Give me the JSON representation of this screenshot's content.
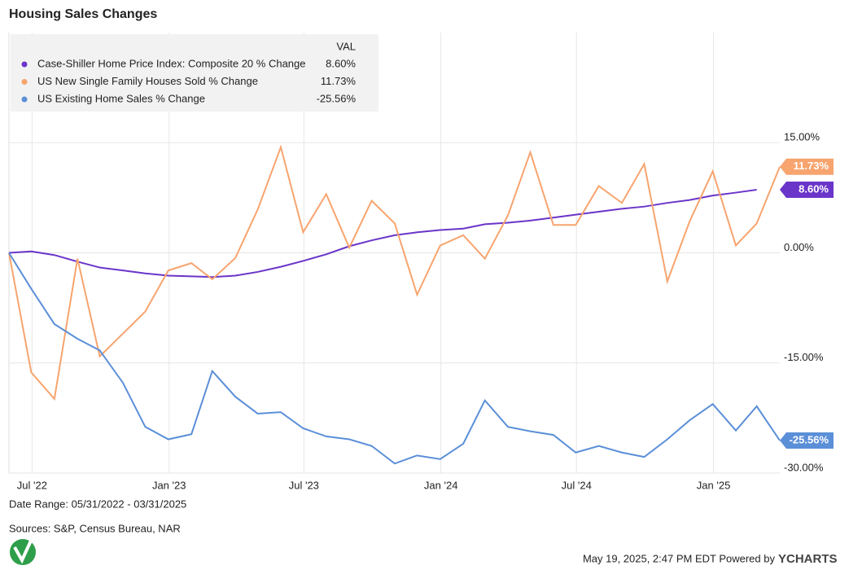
{
  "chart_data": {
    "type": "line",
    "title": "Housing Sales Changes",
    "legend_header": "VAL",
    "x": [
      "2022-05-31",
      "2022-06-30",
      "2022-07-31",
      "2022-08-31",
      "2022-09-30",
      "2022-10-31",
      "2022-11-30",
      "2022-12-31",
      "2023-01-31",
      "2023-02-28",
      "2023-03-31",
      "2023-04-30",
      "2023-05-31",
      "2023-06-30",
      "2023-07-31",
      "2023-08-31",
      "2023-09-30",
      "2023-10-31",
      "2023-11-30",
      "2023-12-31",
      "2024-01-31",
      "2024-02-29",
      "2024-03-31",
      "2024-04-30",
      "2024-05-31",
      "2024-06-30",
      "2024-07-31",
      "2024-08-31",
      "2024-09-30",
      "2024-10-31",
      "2024-11-30",
      "2024-12-31",
      "2025-01-31",
      "2025-02-28",
      "2025-03-31"
    ],
    "series": [
      {
        "name": "Case-Shiller Home Price Index: Composite 20 % Change",
        "color": "#6a35c9",
        "values": [
          0,
          0.2,
          -0.3,
          -1.2,
          -2.0,
          -2.4,
          -2.8,
          -3.1,
          -3.2,
          -3.3,
          -3.1,
          -2.6,
          -1.9,
          -1.1,
          -0.2,
          0.9,
          1.7,
          2.4,
          2.8,
          3.1,
          3.3,
          3.9,
          4.1,
          4.4,
          4.8,
          5.2,
          5.6,
          6.0,
          6.3,
          6.8,
          7.2,
          7.8,
          8.2,
          8.6,
          null
        ],
        "last_value": 8.6,
        "last_label": "8.60%"
      },
      {
        "name": "US New Single Family Houses Sold % Change",
        "color": "#f7a46e",
        "values": [
          0,
          -16.3,
          -19.9,
          -0.8,
          -14.1,
          -11.0,
          -8.0,
          -2.4,
          -1.4,
          -3.6,
          -0.7,
          5.9,
          14.4,
          2.8,
          8.0,
          0.7,
          7.1,
          4.0,
          -5.7,
          1.0,
          2.4,
          -0.8,
          5.1,
          13.7,
          3.8,
          3.8,
          9.1,
          6.8,
          12.1,
          -3.9,
          4.3,
          11.1,
          1.0,
          4.0,
          11.73
        ],
        "last_value": 11.73,
        "last_label": "11.73%"
      },
      {
        "name": "US Existing Home Sales % Change",
        "color": "#5b8fd8",
        "values": [
          0,
          -4.9,
          -9.7,
          -11.7,
          -13.3,
          -17.7,
          -23.7,
          -25.4,
          -24.7,
          -16.1,
          -19.6,
          -21.9,
          -21.7,
          -23.9,
          -25.0,
          -25.4,
          -26.3,
          -28.7,
          -27.6,
          -28.1,
          -26.0,
          -20.1,
          -23.7,
          -24.3,
          -24.8,
          -27.2,
          -26.3,
          -27.2,
          -27.8,
          -25.4,
          -22.8,
          -20.6,
          -24.2,
          -20.9,
          -25.56
        ],
        "last_value": -25.56,
        "last_label": "-25.56%"
      }
    ],
    "xlim": [
      "2022-05-31",
      "2025-03-31"
    ],
    "xticks": [
      {
        "value": "2022-07-01",
        "label": "Jul '22"
      },
      {
        "value": "2023-01-01",
        "label": "Jan '23"
      },
      {
        "value": "2023-07-01",
        "label": "Jul '23"
      },
      {
        "value": "2024-01-01",
        "label": "Jan '24"
      },
      {
        "value": "2024-07-01",
        "label": "Jul '24"
      },
      {
        "value": "2025-01-01",
        "label": "Jan '25"
      }
    ],
    "ylim": [
      -30,
      30
    ],
    "yticks": [
      {
        "value": -30,
        "label": "-30.00%"
      },
      {
        "value": -15,
        "label": "-15.00%"
      },
      {
        "value": 0,
        "label": "0.00%"
      },
      {
        "value": 15,
        "label": "15.00%"
      }
    ],
    "grid": true,
    "legend": "upper left",
    "date_range": "Date Range: 05/31/2022 - 03/31/2025",
    "sources": "Sources: S&P, Census Bureau, NAR",
    "timestamp": "May 19, 2025, 2:47 PM EDT Powered by",
    "brand": "YCHARTS"
  }
}
